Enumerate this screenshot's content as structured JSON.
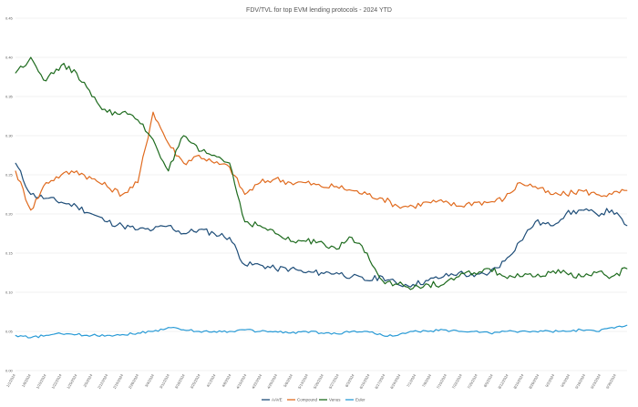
{
  "chart_data": {
    "type": "line",
    "title": "FDV/TVL for top EVM lending protocols - 2024 YTD",
    "xlabel": "",
    "ylabel": "",
    "ylim": [
      0,
      0.45
    ],
    "yticks": [
      "0.00",
      "0.05",
      "0.10",
      "0.15",
      "0.20",
      "0.25",
      "0.30",
      "0.35",
      "0.40",
      "0.45"
    ],
    "grid": true,
    "legend_position": "bottom",
    "x_tick_labels": [
      "1/1/2024",
      "1/8/2024",
      "1/15/2024",
      "1/22/2024",
      "1/29/2024",
      "2/5/2024",
      "2/12/2024",
      "2/19/2024",
      "2/26/2024",
      "3/4/2024",
      "3/11/2024",
      "3/18/2024",
      "3/25/2024",
      "4/1/2024",
      "4/8/2024",
      "4/15/2024",
      "4/22/2024",
      "4/29/2024",
      "5/6/2024",
      "5/13/2024",
      "5/20/2024",
      "5/27/2024",
      "6/3/2024",
      "6/10/2024",
      "6/17/2024",
      "6/24/2024",
      "7/1/2024",
      "7/8/2024",
      "7/15/2024",
      "7/22/2024",
      "7/29/2024",
      "8/5/2024",
      "8/12/2024",
      "8/19/2024",
      "8/26/2024",
      "9/2/2024",
      "9/9/2024",
      "9/16/2024",
      "9/23/2024",
      "9/30/2024"
    ],
    "x": [
      "1/1/2024",
      "1/8/2024",
      "1/15/2024",
      "1/22/2024",
      "1/29/2024",
      "2/5/2024",
      "2/12/2024",
      "2/19/2024",
      "2/26/2024",
      "3/4/2024",
      "3/11/2024",
      "3/18/2024",
      "3/25/2024",
      "4/1/2024",
      "4/8/2024",
      "4/15/2024",
      "4/22/2024",
      "4/29/2024",
      "5/6/2024",
      "5/13/2024",
      "5/20/2024",
      "5/27/2024",
      "6/3/2024",
      "6/10/2024",
      "6/17/2024",
      "6/24/2024",
      "7/1/2024",
      "7/8/2024",
      "7/15/2024",
      "7/22/2024",
      "7/29/2024",
      "8/5/2024",
      "8/12/2024",
      "8/19/2024",
      "8/26/2024",
      "9/2/2024",
      "9/9/2024",
      "9/16/2024",
      "9/23/2024",
      "9/30/2024",
      "10/5/2024"
    ],
    "series": [
      {
        "name": "AAVE",
        "color": "#1f4e79",
        "values": [
          0.265,
          0.225,
          0.22,
          0.215,
          0.21,
          0.2,
          0.19,
          0.185,
          0.18,
          0.18,
          0.185,
          0.175,
          0.18,
          0.175,
          0.17,
          0.135,
          0.135,
          0.13,
          0.13,
          0.125,
          0.125,
          0.125,
          0.12,
          0.115,
          0.12,
          0.11,
          0.11,
          0.115,
          0.12,
          0.125,
          0.12,
          0.125,
          0.14,
          0.165,
          0.19,
          0.185,
          0.2,
          0.205,
          0.2,
          0.205,
          0.185
        ]
      },
      {
        "name": "Compound",
        "color": "#e06b1f",
        "values": [
          0.255,
          0.205,
          0.24,
          0.25,
          0.255,
          0.245,
          0.235,
          0.225,
          0.24,
          0.33,
          0.29,
          0.265,
          0.275,
          0.265,
          0.26,
          0.225,
          0.24,
          0.245,
          0.24,
          0.24,
          0.235,
          0.235,
          0.23,
          0.225,
          0.22,
          0.21,
          0.21,
          0.215,
          0.215,
          0.21,
          0.215,
          0.215,
          0.22,
          0.24,
          0.235,
          0.225,
          0.225,
          0.23,
          0.225,
          0.225,
          0.23
        ]
      },
      {
        "name": "Venus",
        "color": "#1e6b1e",
        "values": [
          0.38,
          0.4,
          0.37,
          0.39,
          0.38,
          0.35,
          0.33,
          0.33,
          0.32,
          0.295,
          0.255,
          0.3,
          0.28,
          0.275,
          0.265,
          0.19,
          0.185,
          0.175,
          0.165,
          0.165,
          0.165,
          0.155,
          0.17,
          0.15,
          0.115,
          0.11,
          0.105,
          0.11,
          0.11,
          0.12,
          0.125,
          0.13,
          0.12,
          0.12,
          0.12,
          0.125,
          0.125,
          0.12,
          0.125,
          0.12,
          0.13
        ]
      },
      {
        "name": "Euler",
        "color": "#2a9bd6",
        "values": [
          0.045,
          0.042,
          0.045,
          0.047,
          0.046,
          0.045,
          0.045,
          0.046,
          0.048,
          0.05,
          0.055,
          0.052,
          0.05,
          0.05,
          0.05,
          0.052,
          0.05,
          0.05,
          0.048,
          0.05,
          0.048,
          0.047,
          0.05,
          0.05,
          0.045,
          0.045,
          0.05,
          0.05,
          0.052,
          0.05,
          0.05,
          0.048,
          0.05,
          0.05,
          0.05,
          0.05,
          0.05,
          0.052,
          0.05,
          0.055,
          0.058
        ]
      }
    ]
  }
}
